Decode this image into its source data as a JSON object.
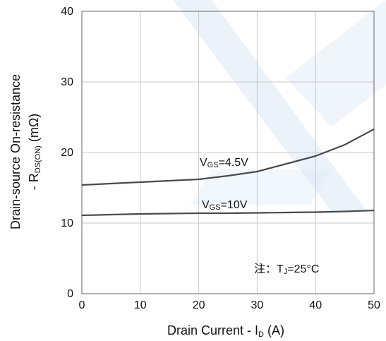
{
  "chart_data": {
    "type": "line",
    "xlabel_main": "Drain Current - I",
    "xlabel_sub": "D",
    "xlabel_unit": " (A)",
    "ylabel_line1": "Drain-source On-resistance",
    "ylabel_line2_prefix": "- R",
    "ylabel_line2_sub": "DS(ON)",
    "ylabel_line2_unit": " (mΩ)",
    "xlim": [
      0,
      50
    ],
    "ylim": [
      0,
      40
    ],
    "x_ticks": [
      "0",
      "10",
      "20",
      "30",
      "40",
      "50"
    ],
    "y_ticks": [
      "0",
      "10",
      "20",
      "30",
      "40"
    ],
    "grid": true,
    "colors": {
      "line": "#4a4a4a",
      "grid": "#c8c8c8",
      "watermark": "#dbe8f6"
    },
    "series": [
      {
        "name_prefix": "V",
        "name_sub": "GS",
        "name_value": "=4.5V",
        "x": [
          0,
          5,
          10,
          15,
          20,
          25,
          30,
          35,
          40,
          45,
          50
        ],
        "y": [
          15.4,
          15.6,
          15.8,
          16.0,
          16.2,
          16.7,
          17.3,
          18.4,
          19.5,
          21.1,
          23.3
        ]
      },
      {
        "name_prefix": "V",
        "name_sub": "GS",
        "name_value": "=10V",
        "x": [
          0,
          5,
          10,
          15,
          20,
          25,
          30,
          35,
          40,
          45,
          50
        ],
        "y": [
          11.1,
          11.2,
          11.3,
          11.35,
          11.4,
          11.4,
          11.45,
          11.5,
          11.55,
          11.65,
          11.8
        ]
      }
    ],
    "note_prefix": "注：T",
    "note_sub": "J",
    "note_value": "=25°C"
  }
}
